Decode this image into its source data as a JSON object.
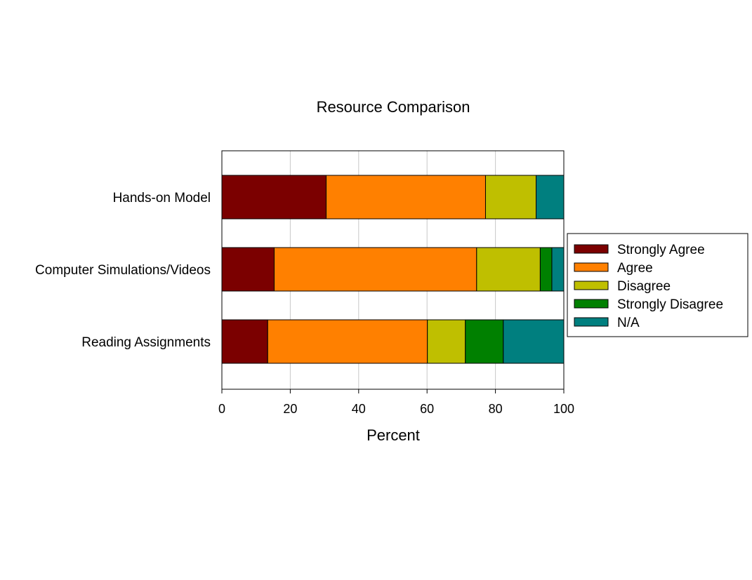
{
  "chart_data": {
    "type": "bar",
    "orientation": "horizontal",
    "stacked": true,
    "title": "Resource Comparison",
    "xlabel": "Percent",
    "ylabel": "",
    "xlim": [
      0,
      100
    ],
    "xticks": [
      "0",
      "20",
      "40",
      "60",
      "80",
      "100"
    ],
    "grid": "vertical",
    "legend_position": "right",
    "categories": [
      "Hands-on Model",
      "Computer Simulations/Videos",
      "Reading Assignments"
    ],
    "series": [
      {
        "name": "Strongly Agree",
        "color": "#7b0000",
        "values": [
          30.5,
          15.3,
          13.4
        ]
      },
      {
        "name": "Agree",
        "color": "#ff8000",
        "values": [
          46.6,
          59.2,
          46.7
        ]
      },
      {
        "name": "Disagree",
        "color": "#bfbf00",
        "values": [
          14.8,
          18.6,
          11.1
        ]
      },
      {
        "name": "Strongly Disagree",
        "color": "#008000",
        "values": [
          0,
          3.4,
          11.1
        ]
      },
      {
        "name": "N/A",
        "color": "#007f7f",
        "values": [
          8.1,
          3.5,
          17.7
        ]
      }
    ]
  }
}
